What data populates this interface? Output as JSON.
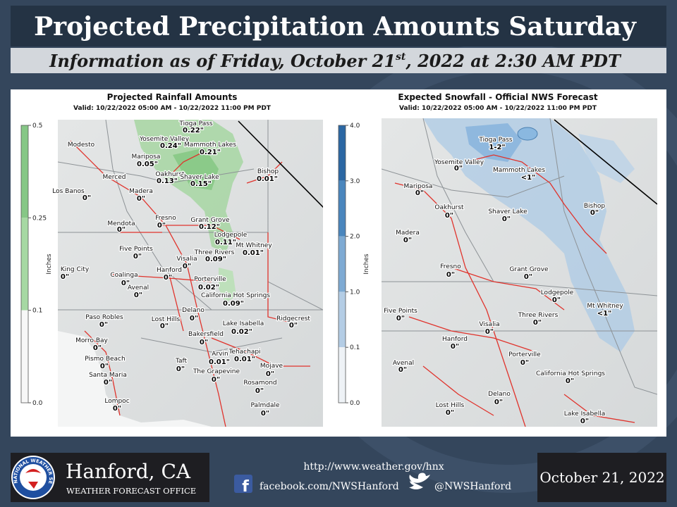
{
  "header": {
    "title": "Projected Precipitation Amounts Saturday",
    "subtitle": [
      "Information as of Friday, October 21",
      "st",
      ", 2022 at 2:30 AM PDT"
    ]
  },
  "rain_map": {
    "title": "Projected Rainfall Amounts",
    "valid": "Valid: 10/22/2022 05:00 AM - 10/22/2022 11:00 PM PDT",
    "colorbar": {
      "label": "Inches",
      "ticks": [
        0.5,
        0.25,
        0.1,
        {
          "value": 0,
          "label": "0.0"
        }
      ]
    },
    "places": [
      {
        "name": "Modesto"
      },
      {
        "name": "Tioga Pass",
        "amount": "0.22\""
      },
      {
        "name": "Yosemite Valley",
        "amount": "0.24\""
      },
      {
        "name": "Mammoth Lakes",
        "amount": "0.21\""
      },
      {
        "name": "Mariposa",
        "amount": "0.05\""
      },
      {
        "name": "Oakhurst",
        "amount": "0.13\""
      },
      {
        "name": "Shaver Lake",
        "amount": "0.15\""
      },
      {
        "name": "Bishop",
        "amount": "0.01\""
      },
      {
        "name": "Merced"
      },
      {
        "name": "Los Banos",
        "amount": "0\""
      },
      {
        "name": "Madera",
        "amount": "0\""
      },
      {
        "name": "Fresno",
        "amount": "0\""
      },
      {
        "name": "Mendota",
        "amount": "0\""
      },
      {
        "name": "Grant Grove",
        "amount": "0.12\""
      },
      {
        "name": "Lodgepole",
        "amount": "0.11\""
      },
      {
        "name": "Mt Whitney",
        "amount": "0.01\""
      },
      {
        "name": "Five Points",
        "amount": "0\""
      },
      {
        "name": "Three Rivers",
        "amount": "0.09\""
      },
      {
        "name": "Visalia",
        "amount": "0\""
      },
      {
        "name": "King City",
        "amount": "0\""
      },
      {
        "name": "Hanford",
        "amount": "0\""
      },
      {
        "name": "Coalinga",
        "amount": "0\""
      },
      {
        "name": "Porterville",
        "amount": "0.02\""
      },
      {
        "name": "Avenal",
        "amount": "0\""
      },
      {
        "name": "California Hot Springs",
        "amount": "0.09\""
      },
      {
        "name": "Delano",
        "amount": "0\""
      },
      {
        "name": "Paso Robles",
        "amount": "0\""
      },
      {
        "name": "Lost Hills",
        "amount": "0\""
      },
      {
        "name": "Lake Isabella",
        "amount": "0.02\""
      },
      {
        "name": "Ridgecrest",
        "amount": "0\""
      },
      {
        "name": "Bakersfield",
        "amount": "0\""
      },
      {
        "name": "Morro Bay",
        "amount": "0\""
      },
      {
        "name": "Tehachapi",
        "amount": "0.01\""
      },
      {
        "name": "Arvin",
        "amount": "0.01\""
      },
      {
        "name": "Pismo Beach",
        "amount": "0\""
      },
      {
        "name": "Taft",
        "amount": "0\""
      },
      {
        "name": "Mojave",
        "amount": "0\""
      },
      {
        "name": "The Grapevine",
        "amount": "0\""
      },
      {
        "name": "Santa Maria",
        "amount": "0\""
      },
      {
        "name": "Rosamond",
        "amount": "0\""
      },
      {
        "name": "Lompoc",
        "amount": "0\""
      },
      {
        "name": "Palmdale",
        "amount": "0\""
      }
    ]
  },
  "snow_map": {
    "title": "Expected Snowfall - Official NWS Forecast",
    "valid": "Valid: 10/22/2022 05:00 AM - 10/22/2022 11:00 PM PDT",
    "colorbar": {
      "label": "Inches",
      "ticks": [
        {
          "value": 4,
          "label": "4.0"
        },
        {
          "value": 3,
          "label": "3.0"
        },
        {
          "value": 2,
          "label": "2.0"
        },
        {
          "value": 1,
          "label": "1.0"
        },
        0.1,
        {
          "value": 0,
          "label": "0.0"
        }
      ]
    },
    "places": [
      {
        "name": "Tioga Pass",
        "amount": "1-2\""
      },
      {
        "name": "Yosemite Valley",
        "amount": "0\""
      },
      {
        "name": "Mammoth Lakes",
        "amount": "<1\""
      },
      {
        "name": "Mariposa",
        "amount": "0\""
      },
      {
        "name": "Bishop",
        "amount": "0\""
      },
      {
        "name": "Oakhurst",
        "amount": "0\""
      },
      {
        "name": "Shaver Lake",
        "amount": "0\""
      },
      {
        "name": "Madera",
        "amount": "0\""
      },
      {
        "name": "Fresno",
        "amount": "0\""
      },
      {
        "name": "Grant Grove",
        "amount": "0\""
      },
      {
        "name": "Lodgepole",
        "amount": "0\""
      },
      {
        "name": "Mt Whitney",
        "amount": "<1\""
      },
      {
        "name": "Five Points",
        "amount": "0\""
      },
      {
        "name": "Three Rivers",
        "amount": "0\""
      },
      {
        "name": "Visalia",
        "amount": "0\""
      },
      {
        "name": "Hanford",
        "amount": "0\""
      },
      {
        "name": "Porterville",
        "amount": "0\""
      },
      {
        "name": "Avenal",
        "amount": "0\""
      },
      {
        "name": "California Hot Springs",
        "amount": "0\""
      },
      {
        "name": "Delano",
        "amount": "0\""
      },
      {
        "name": "Lost Hills",
        "amount": "0\""
      },
      {
        "name": "Lake Isabella",
        "amount": "0\""
      }
    ]
  },
  "footer": {
    "logo_text": "NATIONAL WEATHER SERVICE",
    "office": "Hanford, CA",
    "office_type": "WEATHER FORECAST OFFICE",
    "website": "http://www.weather.gov/hnx",
    "facebook": "facebook.com/NWSHanford",
    "twitter": "@NWSHanford",
    "date": "October 21, 2022"
  }
}
